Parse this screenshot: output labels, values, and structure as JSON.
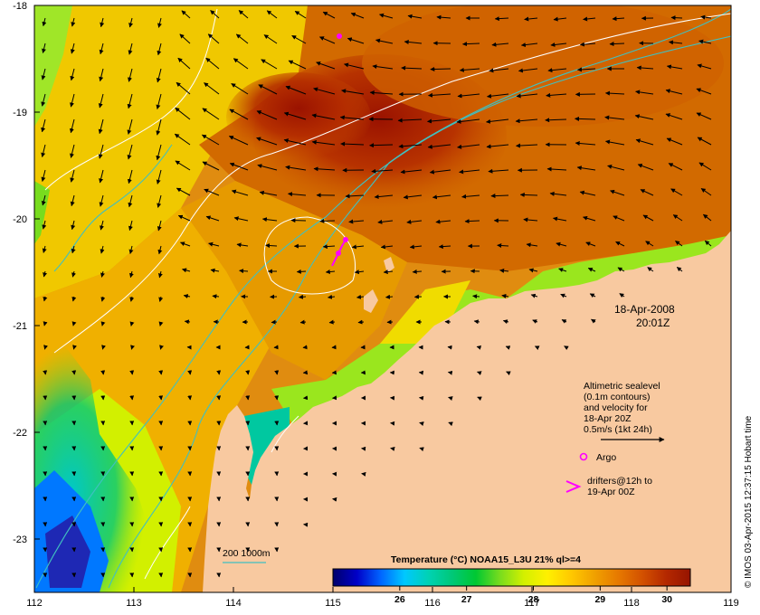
{
  "map": {
    "lon_range": [
      112,
      119
    ],
    "lat_range": [
      -23.5,
      -18
    ],
    "lon_ticks": [
      "112",
      "113",
      "114",
      "115",
      "116",
      "117",
      "118",
      "119"
    ],
    "lat_ticks": [
      "-18",
      "-19",
      "-20",
      "-21",
      "-22",
      "-23"
    ],
    "land_color": "#f8c9a0",
    "contour_color": "#ffffff",
    "isobath_color": "#40c0c0"
  },
  "datetime": {
    "date": "18-Apr-2008",
    "time": "20:01Z"
  },
  "legend": {
    "line1": "Altimetric sealevel",
    "line2": "(0.1m contours)",
    "line3": "and velocity for",
    "line4": "18-Apr 20Z",
    "line5": "0.5m/s (1kt 24h)",
    "argo_label": "Argo",
    "drifters_line1": "drifters@12h to",
    "drifters_line2": "19-Apr 00Z",
    "isobath_label": "200  1000m",
    "argo_color": "#ff00ff",
    "drifter_color": "#ff00ff"
  },
  "colorbar": {
    "title": "Temperature (°C) NOAA15_L3U 21% ql>=4",
    "ticks": [
      "26",
      "27",
      "28",
      "29",
      "30"
    ],
    "range": [
      25,
      30.35
    ],
    "colors": [
      "#00006a",
      "#0000c8",
      "#0064ff",
      "#00c8ff",
      "#00d2b4",
      "#00c878",
      "#00c832",
      "#78dc1e",
      "#d2f000",
      "#fff000",
      "#ffc800",
      "#f0a000",
      "#e67800",
      "#d25000",
      "#b42800",
      "#961400"
    ]
  },
  "credit": "© IMOS 03-Apr-2015 12:37:15 Hobart time"
}
